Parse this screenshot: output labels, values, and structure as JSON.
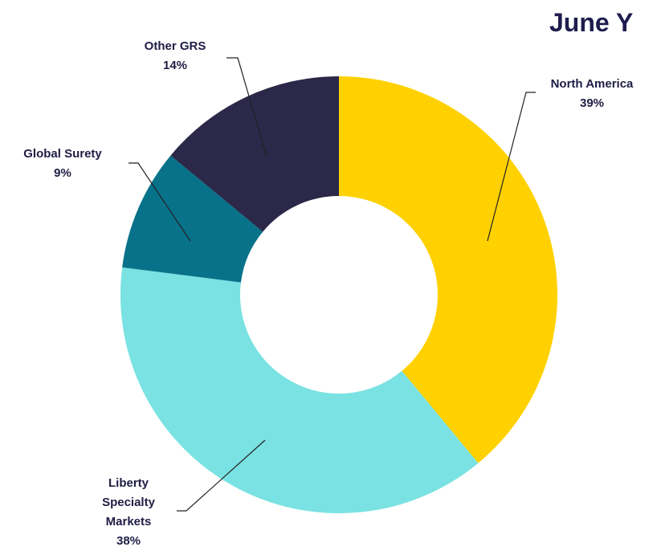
{
  "chart_data": {
    "type": "donut",
    "title": "June Y",
    "categories": [
      "North America",
      "Liberty Specialty Markets",
      "Global Surety",
      "Other GRS"
    ],
    "values": [
      39,
      38,
      9,
      14
    ],
    "value_labels": [
      "39%",
      "38%",
      "9%",
      "14%"
    ],
    "colors": [
      "#FFD100",
      "#7AE2E2",
      "#08728A",
      "#2B2849"
    ]
  }
}
